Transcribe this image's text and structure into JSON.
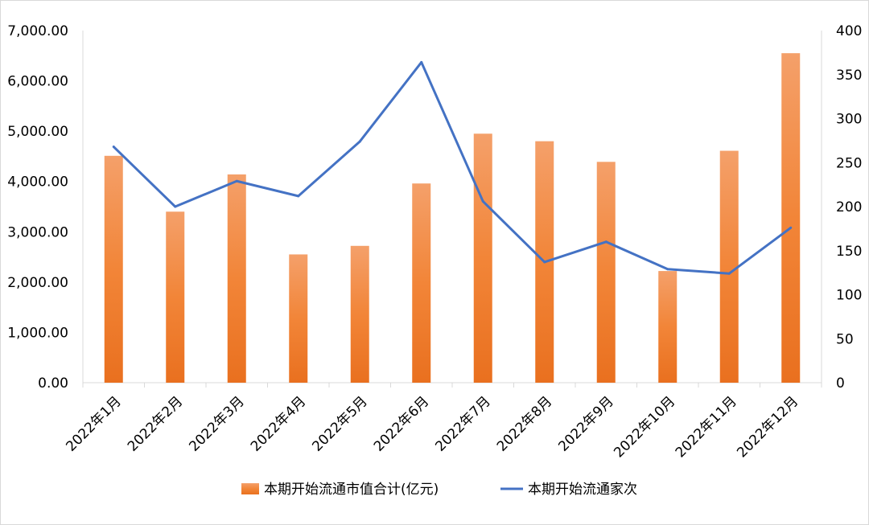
{
  "chart_data": {
    "type": "bar",
    "categories": [
      "2022年1月",
      "2022年2月",
      "2022年3月",
      "2022年4月",
      "2022年5月",
      "2022年6月",
      "2022年7月",
      "2022年8月",
      "2022年9月",
      "2022年10月",
      "2022年11月",
      "2022年12月"
    ],
    "series": [
      {
        "name": "本期开始流通市值合计(亿元)",
        "type": "bar",
        "axis": "left",
        "color": "#f07f2c",
        "values": [
          4510,
          3400,
          4140,
          2550,
          2720,
          3960,
          4950,
          4800,
          4390,
          2220,
          4610,
          6550
        ]
      },
      {
        "name": "本期开始流通家次",
        "type": "line",
        "axis": "right",
        "color": "#4472c4",
        "values": [
          268,
          200,
          229,
          212,
          274,
          364,
          206,
          137,
          160,
          129,
          124,
          176
        ]
      }
    ],
    "y_left": {
      "ylim": [
        0,
        7000
      ],
      "ticks": [
        "0.00",
        "1,000.00",
        "2,000.00",
        "3,000.00",
        "4,000.00",
        "5,000.00",
        "6,000.00",
        "7,000.00"
      ]
    },
    "y_right": {
      "ylim": [
        0,
        400
      ],
      "ticks": [
        "0",
        "50",
        "100",
        "150",
        "200",
        "250",
        "300",
        "350",
        "400"
      ]
    },
    "grid": false,
    "legend_position": "bottom"
  }
}
